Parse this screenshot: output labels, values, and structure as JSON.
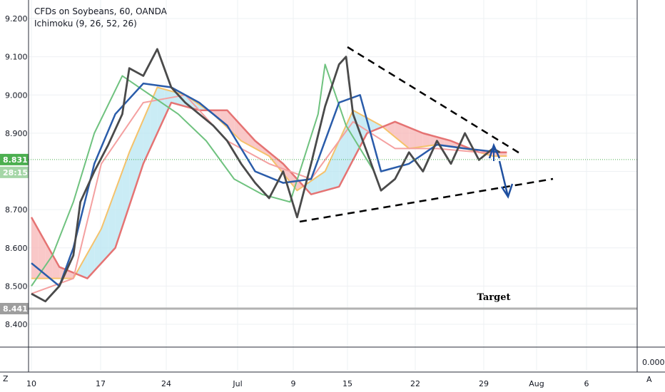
{
  "legend": {
    "title": "CFDs on Soybeans, 60, OANDA",
    "indicator": "Ichimoku (9, 26, 52, 26)"
  },
  "colors": {
    "price": "#4a4a4a",
    "conversion": "#2a5caa",
    "base": "#f4a0a0",
    "lagging": "#6fc27f",
    "span_a": "#f5c26b",
    "span_b": "#e57373",
    "cloud_bull": "#b8e6f2",
    "cloud_bear": "#f7b5b5",
    "current_badge": "#4caf50",
    "target_line": "#b2b2b2",
    "target_badge": "#9e9e9e",
    "arrows": "#1e4fa0"
  },
  "corner": {
    "left": "Z",
    "right": "A"
  },
  "chart_data": {
    "type": "line",
    "x_tick_labels": [
      "10",
      "17",
      "24",
      "Jul",
      "9",
      "15",
      "22",
      "29",
      "Aug",
      "6"
    ],
    "y_tick_labels": [
      "9.200",
      "9.100",
      "9.000",
      "8.900",
      "8.700",
      "8.600",
      "8.500",
      "8.400"
    ],
    "ylim": [
      8.4,
      9.2
    ],
    "current_price": "8.831",
    "countdown": "28:15",
    "target_level": "8.441",
    "target_label": "Target",
    "oscillator_tick": "0.000",
    "price_series": [
      {
        "x": 0,
        "y": 8.48
      },
      {
        "x": 2,
        "y": 8.46
      },
      {
        "x": 4,
        "y": 8.5
      },
      {
        "x": 6,
        "y": 8.58
      },
      {
        "x": 7,
        "y": 8.72
      },
      {
        "x": 9,
        "y": 8.8
      },
      {
        "x": 11,
        "y": 8.87
      },
      {
        "x": 13,
        "y": 8.95
      },
      {
        "x": 14,
        "y": 9.07
      },
      {
        "x": 16,
        "y": 9.05
      },
      {
        "x": 18,
        "y": 9.12
      },
      {
        "x": 20,
        "y": 9.02
      },
      {
        "x": 22,
        "y": 8.98
      },
      {
        "x": 24,
        "y": 8.95
      },
      {
        "x": 26,
        "y": 8.92
      },
      {
        "x": 28,
        "y": 8.88
      },
      {
        "x": 30,
        "y": 8.82
      },
      {
        "x": 32,
        "y": 8.77
      },
      {
        "x": 34,
        "y": 8.73
      },
      {
        "x": 36,
        "y": 8.8
      },
      {
        "x": 38,
        "y": 8.68
      },
      {
        "x": 40,
        "y": 8.82
      },
      {
        "x": 42,
        "y": 8.97
      },
      {
        "x": 44,
        "y": 9.08
      },
      {
        "x": 45,
        "y": 9.1
      },
      {
        "x": 46,
        "y": 8.95
      },
      {
        "x": 48,
        "y": 8.85
      },
      {
        "x": 50,
        "y": 8.75
      },
      {
        "x": 52,
        "y": 8.78
      },
      {
        "x": 54,
        "y": 8.85
      },
      {
        "x": 56,
        "y": 8.8
      },
      {
        "x": 58,
        "y": 8.88
      },
      {
        "x": 60,
        "y": 8.82
      },
      {
        "x": 62,
        "y": 8.9
      },
      {
        "x": 64,
        "y": 8.83
      },
      {
        "x": 66,
        "y": 8.86
      },
      {
        "x": 67,
        "y": 8.85
      }
    ],
    "conversion_series": [
      {
        "x": 0,
        "y": 8.56
      },
      {
        "x": 4,
        "y": 8.5
      },
      {
        "x": 6,
        "y": 8.6
      },
      {
        "x": 9,
        "y": 8.82
      },
      {
        "x": 12,
        "y": 8.95
      },
      {
        "x": 16,
        "y": 9.03
      },
      {
        "x": 20,
        "y": 9.02
      },
      {
        "x": 24,
        "y": 8.98
      },
      {
        "x": 28,
        "y": 8.92
      },
      {
        "x": 32,
        "y": 8.8
      },
      {
        "x": 36,
        "y": 8.77
      },
      {
        "x": 40,
        "y": 8.78
      },
      {
        "x": 44,
        "y": 8.98
      },
      {
        "x": 47,
        "y": 9.0
      },
      {
        "x": 50,
        "y": 8.8
      },
      {
        "x": 54,
        "y": 8.82
      },
      {
        "x": 58,
        "y": 8.87
      },
      {
        "x": 62,
        "y": 8.86
      },
      {
        "x": 67,
        "y": 8.85
      }
    ],
    "base_series": [
      {
        "x": 0,
        "y": 8.48
      },
      {
        "x": 6,
        "y": 8.52
      },
      {
        "x": 10,
        "y": 8.82
      },
      {
        "x": 16,
        "y": 8.98
      },
      {
        "x": 22,
        "y": 9.0
      },
      {
        "x": 28,
        "y": 8.88
      },
      {
        "x": 34,
        "y": 8.82
      },
      {
        "x": 40,
        "y": 8.78
      },
      {
        "x": 46,
        "y": 8.93
      },
      {
        "x": 52,
        "y": 8.86
      },
      {
        "x": 58,
        "y": 8.86
      },
      {
        "x": 64,
        "y": 8.85
      },
      {
        "x": 67,
        "y": 8.85
      }
    ],
    "lagging_series": [
      {
        "x": 0,
        "y": 8.5
      },
      {
        "x": 3,
        "y": 8.58
      },
      {
        "x": 6,
        "y": 8.72
      },
      {
        "x": 9,
        "y": 8.9
      },
      {
        "x": 13,
        "y": 9.05
      },
      {
        "x": 17,
        "y": 9.0
      },
      {
        "x": 21,
        "y": 8.95
      },
      {
        "x": 25,
        "y": 8.88
      },
      {
        "x": 29,
        "y": 8.78
      },
      {
        "x": 33,
        "y": 8.74
      },
      {
        "x": 37,
        "y": 8.72
      },
      {
        "x": 41,
        "y": 8.95
      },
      {
        "x": 42,
        "y": 9.08
      },
      {
        "x": 45,
        "y": 8.92
      },
      {
        "x": 49,
        "y": 8.8
      }
    ],
    "span_a_series": [
      {
        "x": 0,
        "y": 8.52
      },
      {
        "x": 6,
        "y": 8.52
      },
      {
        "x": 10,
        "y": 8.65
      },
      {
        "x": 14,
        "y": 8.85
      },
      {
        "x": 18,
        "y": 9.02
      },
      {
        "x": 22,
        "y": 9.0
      },
      {
        "x": 26,
        "y": 8.95
      },
      {
        "x": 30,
        "y": 8.88
      },
      {
        "x": 34,
        "y": 8.84
      },
      {
        "x": 38,
        "y": 8.75
      },
      {
        "x": 42,
        "y": 8.8
      },
      {
        "x": 46,
        "y": 8.96
      },
      {
        "x": 50,
        "y": 8.92
      },
      {
        "x": 54,
        "y": 8.86
      },
      {
        "x": 58,
        "y": 8.87
      },
      {
        "x": 62,
        "y": 8.86
      },
      {
        "x": 66,
        "y": 8.84
      },
      {
        "x": 68,
        "y": 8.84
      }
    ],
    "span_b_series": [
      {
        "x": 0,
        "y": 8.68
      },
      {
        "x": 4,
        "y": 8.55
      },
      {
        "x": 8,
        "y": 8.52
      },
      {
        "x": 12,
        "y": 8.6
      },
      {
        "x": 16,
        "y": 8.82
      },
      {
        "x": 20,
        "y": 8.98
      },
      {
        "x": 24,
        "y": 8.96
      },
      {
        "x": 28,
        "y": 8.96
      },
      {
        "x": 32,
        "y": 8.88
      },
      {
        "x": 36,
        "y": 8.82
      },
      {
        "x": 40,
        "y": 8.74
      },
      {
        "x": 44,
        "y": 8.76
      },
      {
        "x": 48,
        "y": 8.9
      },
      {
        "x": 52,
        "y": 8.93
      },
      {
        "x": 56,
        "y": 8.9
      },
      {
        "x": 60,
        "y": 8.88
      },
      {
        "x": 64,
        "y": 8.85
      },
      {
        "x": 68,
        "y": 8.85
      }
    ]
  }
}
